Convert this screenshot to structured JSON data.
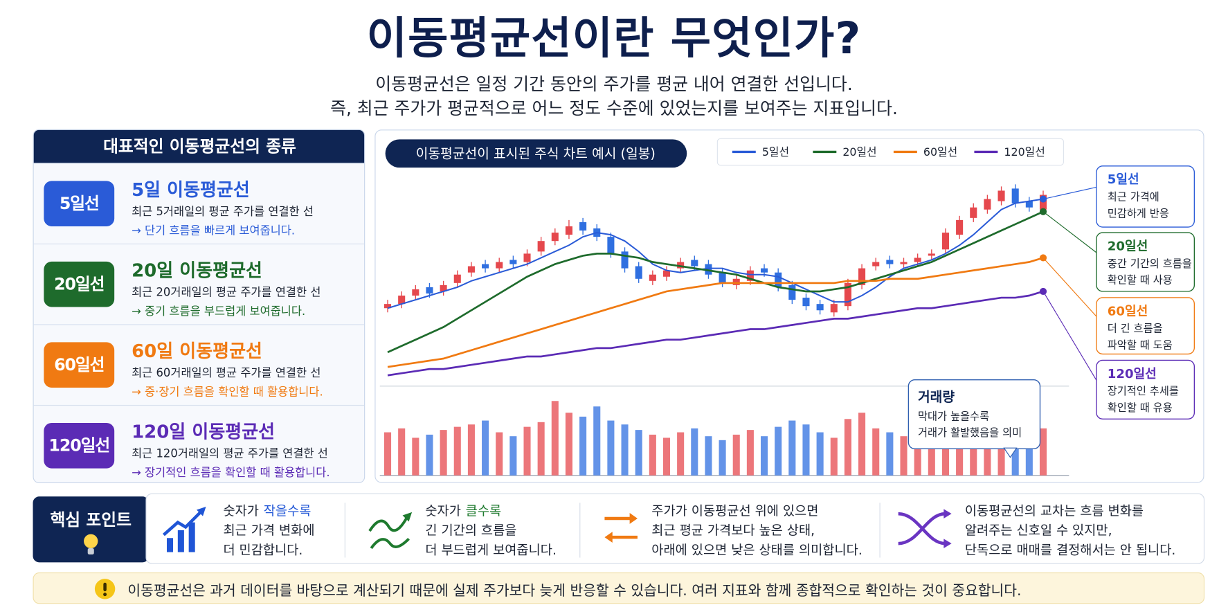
{
  "header": {
    "title": "이동평균선이란 무엇인가?",
    "subtitle_lines": [
      "이동평균선은 일정 기간 동안의 주가를 평균 내어 연결한 선입니다.",
      "즉, 최근 주가가 평균적으로 어느 정도 수준에 있었는지를 보여주는 지표입니다."
    ]
  },
  "types_panel": {
    "title": "대표적인 이동평균선의 종류",
    "items": [
      {
        "badge": "5일선",
        "name": "5일 이동평균선",
        "desc": "최근 5거래일의 평균 주가를 연결한 선",
        "note": "→ 단기 흐름을 빠르게 보여줍니다."
      },
      {
        "badge": "20일선",
        "name": "20일 이동평균선",
        "desc": "최근 20거래일의 평균 주가를 연결한 선",
        "note": "→ 중기 흐름을 부드럽게 보여줍니다."
      },
      {
        "badge": "60일선",
        "name": "60일 이동평균선",
        "desc": "최근 60거래일의 평균 주가를 연결한 선",
        "note": "→ 중·장기 흐름을 확인할 때 활용합니다."
      },
      {
        "badge": "120일선",
        "name": "120일 이동평균선",
        "desc": "최근 120거래일의 평균 주가를 연결한 선",
        "note": "→ 장기적인 흐름을 확인할 때 활용합니다."
      }
    ]
  },
  "chart_data": {
    "type": "candlestick",
    "title": "이동평균선이 표시된 주식 차트 예시 (일봉)",
    "ylim": [
      0,
      100
    ],
    "up_color": "#e5484d",
    "down_color": "#2f6fe0",
    "open": [
      36,
      38,
      42,
      46,
      44,
      48,
      53,
      57,
      55,
      59,
      58,
      63,
      68,
      71,
      77,
      74,
      70,
      63,
      56,
      49,
      51,
      55,
      59,
      57,
      53,
      47,
      49,
      55,
      53,
      47,
      41,
      38,
      34,
      37,
      47,
      56,
      59,
      57,
      58,
      61,
      64,
      71,
      79,
      83,
      87,
      93,
      87,
      83
    ],
    "high": [
      40,
      44,
      47,
      48,
      49,
      54,
      58,
      59,
      60,
      61,
      64,
      70,
      74,
      78,
      79,
      76,
      72,
      65,
      58,
      54,
      56,
      60,
      61,
      59,
      55,
      52,
      56,
      57,
      55,
      49,
      43,
      40,
      40,
      50,
      57,
      60,
      61,
      60,
      62,
      64,
      74,
      80,
      86,
      90,
      94,
      95,
      89,
      92
    ],
    "low": [
      34,
      36,
      40,
      41,
      42,
      46,
      51,
      53,
      53,
      55,
      56,
      61,
      66,
      69,
      71,
      68,
      60,
      53,
      48,
      47,
      49,
      53,
      54,
      50,
      46,
      45,
      47,
      51,
      44,
      38,
      35,
      33,
      32,
      35,
      45,
      54,
      55,
      55,
      56,
      59,
      62,
      69,
      77,
      81,
      85,
      84,
      82,
      81
    ],
    "close": [
      38,
      42,
      45,
      43,
      47,
      52,
      56,
      55,
      58,
      57,
      62,
      68,
      72,
      75,
      73,
      70,
      62,
      55,
      50,
      52,
      54,
      58,
      56,
      52,
      48,
      50,
      54,
      53,
      46,
      40,
      37,
      35,
      38,
      48,
      55,
      58,
      57,
      58,
      60,
      62,
      72,
      78,
      84,
      88,
      92,
      86,
      84,
      90
    ],
    "series": [
      {
        "name": "5일선",
        "color": "#2a5bd7",
        "values": [
          36,
          38,
          40,
          42,
          44,
          46,
          49,
          51,
          53,
          55,
          57,
          60,
          63,
          66,
          70,
          72,
          71,
          68,
          63,
          57,
          54,
          53,
          54,
          55,
          55,
          53,
          52,
          52,
          51,
          48,
          45,
          42,
          39,
          39,
          42,
          46,
          51,
          55,
          57,
          59,
          62,
          66,
          71,
          77,
          83,
          86,
          87,
          88
        ]
      },
      {
        "name": "20일선",
        "color": "#1e6b2c",
        "values": [
          15,
          18,
          21,
          24,
          27,
          31,
          35,
          39,
          43,
          47,
          51,
          54,
          57,
          59,
          61,
          62,
          62,
          61,
          60,
          58,
          57,
          56,
          55,
          54,
          53,
          52,
          50,
          48,
          46,
          45,
          44,
          44,
          45,
          46,
          48,
          50,
          52,
          54,
          56,
          58,
          61,
          64,
          67,
          70,
          73,
          76,
          79,
          82
        ]
      },
      {
        "name": "60일선",
        "color": "#f07a12",
        "values": [
          8,
          9,
          10,
          11,
          12,
          14,
          16,
          18,
          20,
          22,
          24,
          26,
          28,
          30,
          32,
          34,
          36,
          38,
          40,
          42,
          44,
          45,
          46,
          47,
          48,
          48,
          48,
          48,
          48,
          48,
          48,
          48,
          48,
          49,
          49,
          49,
          50,
          50,
          50,
          51,
          52,
          53,
          54,
          55,
          56,
          57,
          58,
          60
        ]
      },
      {
        "name": "120일선",
        "color": "#5b2bb5",
        "values": [
          4,
          5,
          6,
          7,
          7,
          8,
          9,
          10,
          11,
          12,
          13,
          13,
          14,
          15,
          16,
          17,
          17,
          18,
          19,
          20,
          21,
          21,
          22,
          23,
          24,
          25,
          26,
          26,
          27,
          28,
          29,
          30,
          31,
          31,
          32,
          33,
          34,
          35,
          36,
          36,
          37,
          38,
          39,
          40,
          41,
          41,
          42,
          44
        ]
      }
    ],
    "volume": {
      "title": "거래량",
      "lines": [
        "막대가 높을수록",
        "거래가 활발했음을 의미"
      ],
      "ylim": [
        0,
        100
      ],
      "values": [
        55,
        60,
        48,
        52,
        58,
        62,
        65,
        70,
        55,
        50,
        62,
        68,
        95,
        80,
        75,
        88,
        70,
        65,
        58,
        52,
        48,
        55,
        60,
        50,
        45,
        52,
        58,
        50,
        62,
        70,
        65,
        55,
        48,
        72,
        80,
        60,
        55,
        50,
        52,
        58,
        62,
        70,
        75,
        68,
        72,
        80,
        65,
        60
      ]
    },
    "callouts": [
      {
        "title": "5일선",
        "lines": [
          "최근 가격에",
          "민감하게 반응"
        ]
      },
      {
        "title": "20일선",
        "lines": [
          "중간 기간의 흐름을",
          "확인할 때 사용"
        ]
      },
      {
        "title": "60일선",
        "lines": [
          "더 긴 흐름을",
          "파악할 때 도움"
        ]
      },
      {
        "title": "120일선",
        "lines": [
          "장기적인 추세를",
          "확인할 때 유용"
        ]
      }
    ]
  },
  "key_points": {
    "title": "핵심 포인트",
    "items": [
      {
        "lead": "숫자가",
        "emph": "작을수록",
        "lines": [
          "최근 가격 변화에",
          "더 민감합니다."
        ]
      },
      {
        "lead": "숫자가",
        "emph": "클수록",
        "lines": [
          "긴 기간의 흐름을",
          "더 부드럽게 보여줍니다."
        ]
      },
      {
        "lines": [
          "주가가 이동평균선 위에 있으면",
          "최근 평균 가격보다 높은 상태,",
          "아래에 있으면 낮은 상태를 의미합니다."
        ]
      },
      {
        "lines": [
          "이동평균선의 교차는 흐름 변화를",
          "알려주는 신호일 수 있지만,",
          "단독으로 매매를 결정해서는 안 됩니다."
        ]
      }
    ]
  },
  "footer": {
    "text": "이동평균선은 과거 데이터를 바탕으로 계산되기 때문에 실제 주가보다 늦게 반응할 수 있습니다. 여러 지표와 함께 종합적으로 확인하는 것이 중요합니다."
  }
}
